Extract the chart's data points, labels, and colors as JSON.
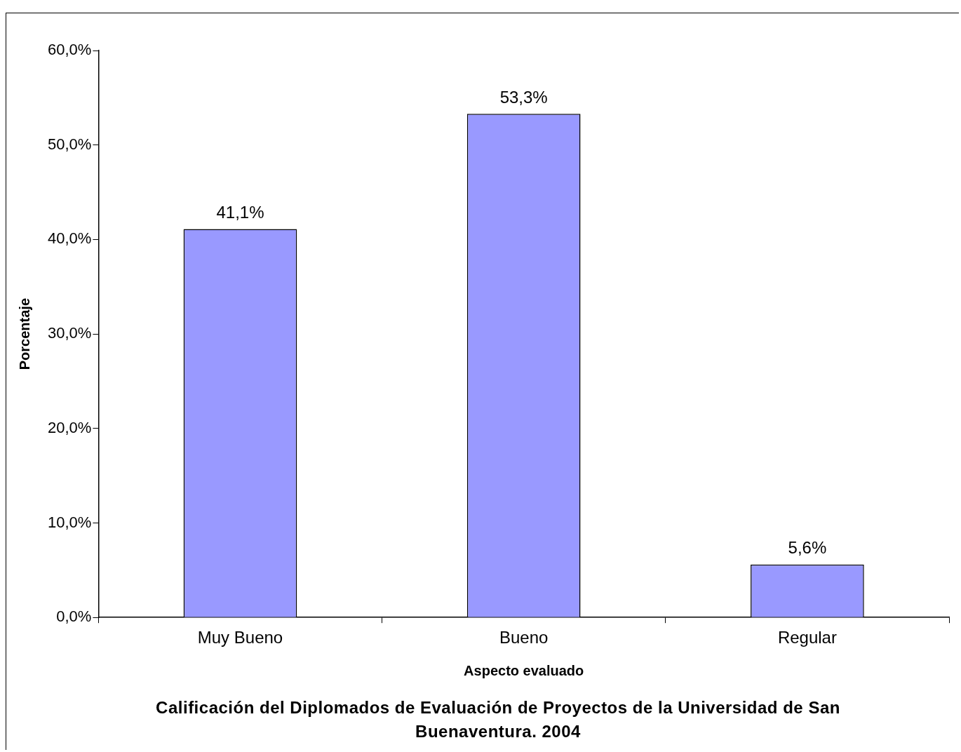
{
  "chart_data": {
    "type": "bar",
    "title": "Calificación del Diplomados de Evaluación de Proyectos de la Universidad de San Buenaventura. 2004",
    "xlabel": "Aspecto evaluado",
    "ylabel": "Porcentaje",
    "categories": [
      "Muy Bueno",
      "Bueno",
      "Regular"
    ],
    "values": [
      41.1,
      53.3,
      5.6
    ],
    "value_labels": [
      "41,1%",
      "53,3%",
      "5,6%"
    ],
    "color": "#9999ff",
    "ylim": [
      0,
      60
    ],
    "yticks": [
      {
        "value": 0,
        "label": "0,0%"
      },
      {
        "value": 10,
        "label": "10,0%"
      },
      {
        "value": 20,
        "label": "20,0%"
      },
      {
        "value": 30,
        "label": "30,0%"
      },
      {
        "value": 40,
        "label": "40,0%"
      },
      {
        "value": 50,
        "label": "50,0%"
      },
      {
        "value": 60,
        "label": "60,0%"
      }
    ],
    "grid": false,
    "legend": false
  }
}
